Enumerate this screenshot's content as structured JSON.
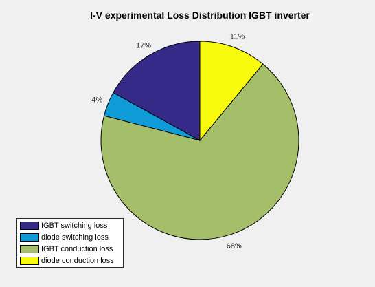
{
  "chart_data": {
    "type": "pie",
    "title": "I-V experimental Loss Distribution  IGBT inverter",
    "categories": [
      "IGBT switching loss",
      "diode switching loss",
      "IGBT conduction loss",
      "diode conduction loss"
    ],
    "values": [
      17,
      4,
      68,
      11
    ],
    "labels": [
      "17%",
      "4%",
      "68%",
      "11%"
    ],
    "colors": [
      "#352a87",
      "#0f9bd7",
      "#a5be6a",
      "#f9fb0e"
    ],
    "legend_position": "bottom-left",
    "start": "top, counterclockwise"
  }
}
